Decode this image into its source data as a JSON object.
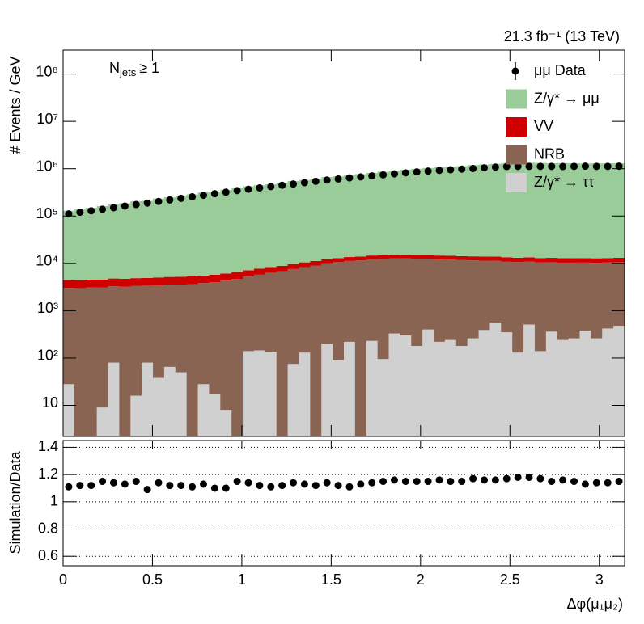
{
  "chart_data": [
    {
      "type": "stacked_histogram",
      "top_right_label": "21.3 fb⁻¹ (13 TeV)",
      "annotation": {
        "symbol": "N",
        "subscript": "jets",
        "text": "≥ 1"
      },
      "y_label": "# Events / GeV",
      "log_y": true,
      "bins": [
        0,
        0.0628,
        0.1257,
        0.1885,
        0.2513,
        0.3142,
        0.377,
        0.4398,
        0.5027,
        0.5655,
        0.6283,
        0.6912,
        0.754,
        0.8168,
        0.8796,
        0.9425,
        1.0053,
        1.0681,
        1.131,
        1.1938,
        1.2566,
        1.3195,
        1.3823,
        1.4451,
        1.508,
        1.5708,
        1.6336,
        1.6965,
        1.7593,
        1.8221,
        1.885,
        1.9478,
        2.0106,
        2.0735,
        2.1363,
        2.1991,
        2.2619,
        2.3248,
        2.3876,
        2.4504,
        2.5133,
        2.5761,
        2.6389,
        2.7018,
        2.7646,
        2.8274,
        2.8903,
        2.9531,
        3.0159,
        3.0788,
        3.1416
      ],
      "xlim": [
        0,
        3.1416
      ],
      "ylim": [
        2.2,
        320000000
      ],
      "yticks": [
        10,
        {
          "value": 100,
          "label": "10²"
        },
        {
          "value": 1000,
          "label": "10³"
        },
        {
          "value": 10000,
          "label": "10⁴"
        },
        {
          "value": 100000,
          "label": "10⁵"
        },
        {
          "value": 1000000,
          "label": "10⁶"
        },
        {
          "value": 10000000,
          "label": "10⁷"
        },
        {
          "value": 100000000,
          "label": "10⁸"
        }
      ],
      "data": {
        "name": "μμ Data",
        "color": "#000000",
        "values": [
          111000,
          120000,
          129000,
          139000,
          150000,
          162000,
          175000,
          188000,
          203000,
          219000,
          236000,
          255000,
          274000,
          296000,
          319000,
          344000,
          368000,
          393000,
          418000,
          446000,
          475000,
          506000,
          540000,
          575000,
          607000,
          638000,
          670000,
          705000,
          740000,
          777000,
          817000,
          857000,
          890000,
          918000,
          948000,
          979000,
          1010000,
          1045000,
          1080000,
          1110000,
          1120000,
          1120000,
          1120000,
          1120000,
          1110000,
          1120000,
          1130000,
          1120000,
          1120000,
          1130000
        ]
      },
      "series": [
        {
          "name": "Z/γ* → ττ",
          "color": "#d0d0d0",
          "values": [
            28,
            0,
            0,
            9,
            80,
            0,
            16,
            80,
            38,
            65,
            50,
            0,
            28,
            17,
            8,
            0,
            140,
            145,
            135,
            0,
            75,
            130,
            0,
            200,
            90,
            220,
            0,
            230,
            95,
            330,
            300,
            180,
            400,
            220,
            240,
            180,
            260,
            390,
            560,
            350,
            130,
            510,
            140,
            360,
            240,
            260,
            380,
            260,
            420,
            480
          ]
        },
        {
          "name": "NRB",
          "color": "#8a6453",
          "values": [
            3000,
            3000,
            3100,
            3100,
            3200,
            3200,
            3300,
            3300,
            3400,
            3500,
            3500,
            3600,
            3800,
            4000,
            4300,
            4700,
            5100,
            5600,
            6200,
            6800,
            7500,
            8200,
            9000,
            9800,
            10500,
            11000,
            11500,
            12000,
            12300,
            12500,
            12400,
            12300,
            12100,
            11900,
            11700,
            11500,
            11300,
            11000,
            10800,
            10600,
            10500,
            10400,
            10300,
            10200,
            10100,
            10100,
            10000,
            10000,
            10000,
            10100
          ]
        },
        {
          "name": "VV",
          "color": "#d00000",
          "values": [
            1400,
            1400,
            1450,
            1450,
            1500,
            1500,
            1550,
            1550,
            1600,
            1600,
            1650,
            1700,
            1700,
            1750,
            1800,
            1850,
            1900,
            1950,
            2000,
            2050,
            2100,
            2150,
            2200,
            2250,
            2300,
            2350,
            2400,
            2400,
            2450,
            2450,
            2500,
            2500,
            2500,
            2500,
            2500,
            2500,
            2500,
            2500,
            2500,
            2500,
            2500,
            2500,
            2500,
            2500,
            2500,
            2500,
            2500,
            2500,
            2500,
            2500
          ]
        },
        {
          "name": "Z/γ* → μμ",
          "color": "#99cc99",
          "values": [
            125000,
            135000,
            145000,
            158000,
            170000,
            182000,
            199000,
            204000,
            230000,
            244000,
            263000,
            281000,
            308000,
            324000,
            350000,
            394000,
            417000,
            438000,
            462000,
            497000,
            540000,
            569000,
            602000,
            653000,
            677000,
            706000,
            754000,
            800000,
            850000,
            900000,
            938000,
            984000,
            1020000,
            1060000,
            1090000,
            1120000,
            1180000,
            1210000,
            1250000,
            1300000,
            1320000,
            1320000,
            1310000,
            1290000,
            1300000,
            1290000,
            1270000,
            1280000,
            1280000,
            1290000
          ]
        }
      ]
    },
    {
      "type": "ratio",
      "y_label": "Simulation/Data",
      "x_label": "Δφ(μ₁μ₂)",
      "xlim": [
        0,
        3.1416
      ],
      "xticks": [
        0,
        0.5,
        1,
        1.5,
        2,
        2.5,
        3
      ],
      "ylim": [
        0.53,
        1.45
      ],
      "yticks": [
        0.6,
        0.8,
        1,
        1.2,
        1.4
      ],
      "grid": "dotted",
      "color": "#000000",
      "values": [
        1.11,
        1.12,
        1.12,
        1.15,
        1.14,
        1.13,
        1.15,
        1.09,
        1.14,
        1.12,
        1.12,
        1.11,
        1.13,
        1.1,
        1.1,
        1.15,
        1.14,
        1.12,
        1.11,
        1.12,
        1.14,
        1.13,
        1.12,
        1.14,
        1.12,
        1.11,
        1.13,
        1.14,
        1.15,
        1.16,
        1.15,
        1.15,
        1.15,
        1.16,
        1.15,
        1.15,
        1.17,
        1.16,
        1.16,
        1.17,
        1.18,
        1.18,
        1.17,
        1.15,
        1.16,
        1.15,
        1.13,
        1.14,
        1.14,
        1.15
      ]
    }
  ]
}
